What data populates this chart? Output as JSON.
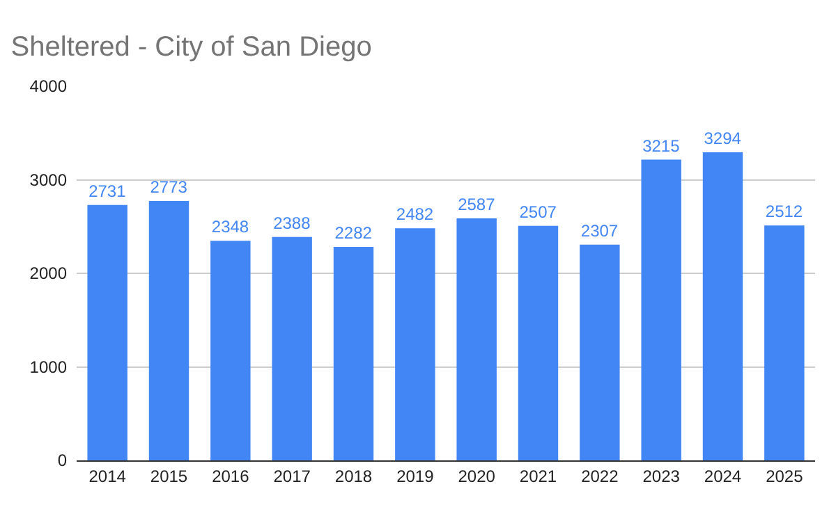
{
  "chart_data": {
    "type": "bar",
    "title": "Sheltered - City of San Diego",
    "categories": [
      "2014",
      "2015",
      "2016",
      "2017",
      "2018",
      "2019",
      "2020",
      "2021",
      "2022",
      "2023",
      "2024",
      "2025"
    ],
    "values": [
      2731,
      2773,
      2348,
      2388,
      2282,
      2482,
      2587,
      2507,
      2307,
      3215,
      3294,
      2512
    ],
    "color": "#4285f4",
    "ylim": [
      0,
      4000
    ],
    "yticks": [
      0,
      1000,
      2000,
      3000,
      4000
    ],
    "grid": "y",
    "data_labels": true
  }
}
